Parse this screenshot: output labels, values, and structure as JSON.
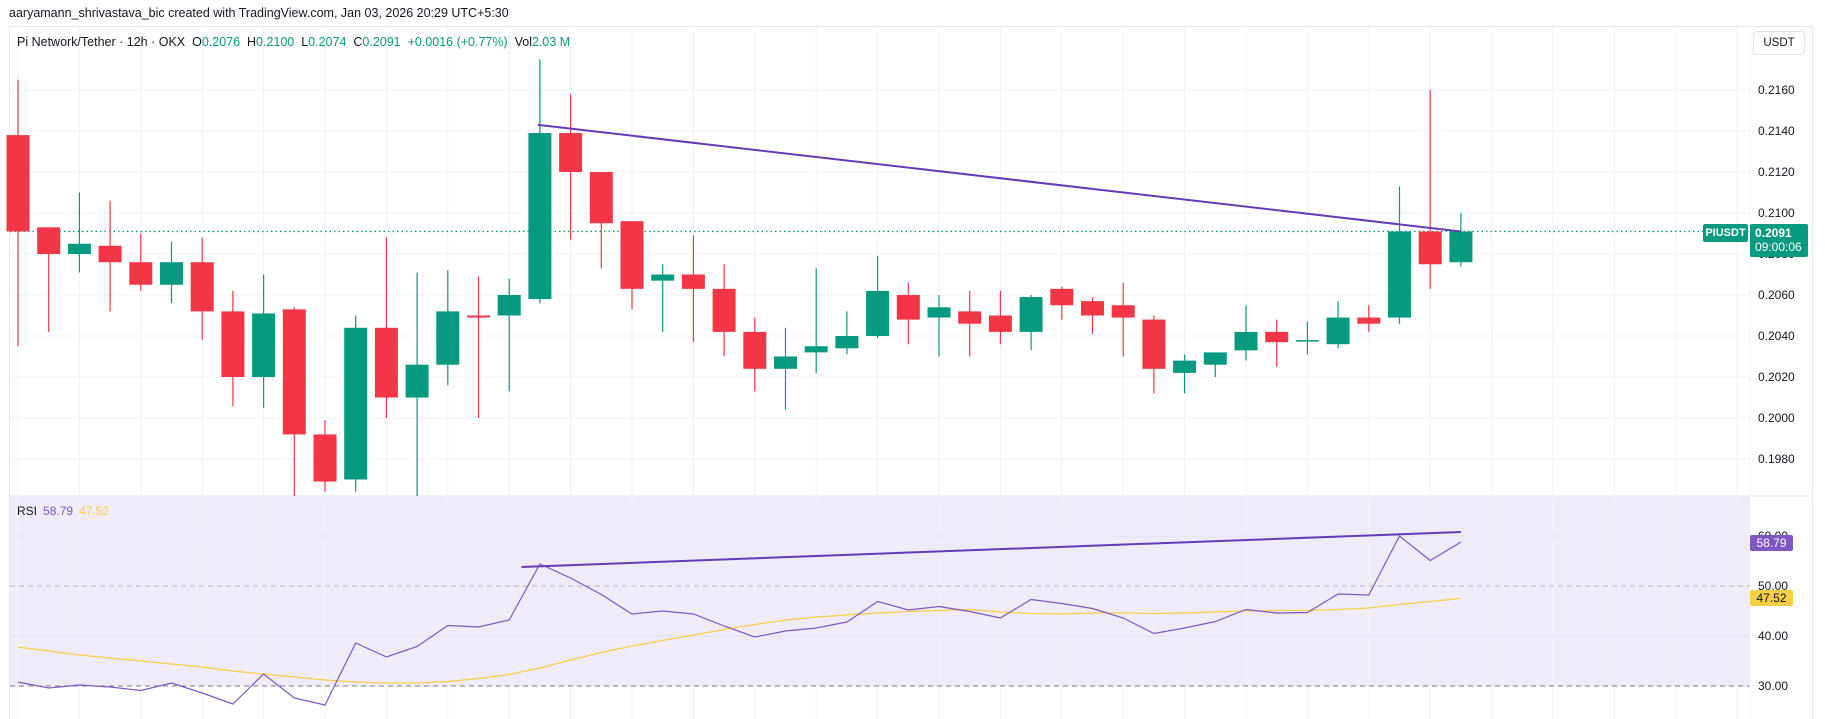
{
  "credit": "aaryamann_shrivastava_bic created with TradingView.com, Jan 03, 2026 20:29 UTC+5:30",
  "legend": {
    "symbol": "Pi Network/Tether · 12h · OKX",
    "open_label": "O",
    "open": "0.2076",
    "high_label": "H",
    "high": "0.2100",
    "low_label": "L",
    "low": "0.2074",
    "close_label": "C",
    "close": "0.2091",
    "change": "+0.0016 (+0.77%)",
    "vol_label": "Vol",
    "vol": "2.03 M"
  },
  "currency_button": "USDT",
  "price_badge": {
    "symbol": "PIUSDT",
    "price": "0.2091",
    "countdown": "09:00:06"
  },
  "rsi_legend": {
    "label": "RSI",
    "rsi": "58.79",
    "ma": "47.52"
  },
  "colors": {
    "up": "#089981",
    "down": "#f23645",
    "trendline": "#673ab7",
    "rsi_line": "#7e57c2",
    "rsi_ma": "#f7cf45",
    "rsi_band": "#efebf8",
    "grid": "#f0f1f4",
    "last_price": "#089981"
  },
  "chart_data": [
    {
      "type": "candlestick",
      "title": "Pi Network/Tether · 12h · OKX",
      "ylabel": "USDT",
      "ylim": [
        0.1968,
        0.2178
      ],
      "yticks": [
        "0.2160",
        "0.2140",
        "0.2120",
        "0.2100",
        "0.2080",
        "0.2060",
        "0.2040",
        "0.2020",
        "0.2000",
        "0.1980"
      ],
      "last_price": 0.2091,
      "candles": [
        {
          "o": 0.2138,
          "h": 0.2165,
          "l": 0.2035,
          "c": 0.2091
        },
        {
          "o": 0.2093,
          "h": 0.2093,
          "l": 0.2042,
          "c": 0.208
        },
        {
          "o": 0.208,
          "h": 0.211,
          "l": 0.2071,
          "c": 0.2085
        },
        {
          "o": 0.2084,
          "h": 0.2106,
          "l": 0.2052,
          "c": 0.2076
        },
        {
          "o": 0.2076,
          "h": 0.209,
          "l": 0.2062,
          "c": 0.2065
        },
        {
          "o": 0.2065,
          "h": 0.2086,
          "l": 0.2056,
          "c": 0.2076
        },
        {
          "o": 0.2076,
          "h": 0.2088,
          "l": 0.2038,
          "c": 0.2052
        },
        {
          "o": 0.2052,
          "h": 0.2062,
          "l": 0.2006,
          "c": 0.202
        },
        {
          "o": 0.202,
          "h": 0.207,
          "l": 0.2005,
          "c": 0.2051
        },
        {
          "o": 0.2053,
          "h": 0.2054,
          "l": 0.196,
          "c": 0.1992
        },
        {
          "o": 0.1992,
          "h": 0.1999,
          "l": 0.1964,
          "c": 0.1969
        },
        {
          "o": 0.197,
          "h": 0.205,
          "l": 0.1964,
          "c": 0.2044
        },
        {
          "o": 0.2044,
          "h": 0.2088,
          "l": 0.2,
          "c": 0.201
        },
        {
          "o": 0.201,
          "h": 0.2071,
          "l": 0.1955,
          "c": 0.2026
        },
        {
          "o": 0.2026,
          "h": 0.2072,
          "l": 0.2016,
          "c": 0.2052
        },
        {
          "o": 0.205,
          "h": 0.2069,
          "l": 0.2,
          "c": 0.2049
        },
        {
          "o": 0.205,
          "h": 0.2068,
          "l": 0.2013,
          "c": 0.206
        },
        {
          "o": 0.2058,
          "h": 0.2175,
          "l": 0.2056,
          "c": 0.2139
        },
        {
          "o": 0.2139,
          "h": 0.2158,
          "l": 0.2087,
          "c": 0.212
        },
        {
          "o": 0.212,
          "h": 0.212,
          "l": 0.2073,
          "c": 0.2095
        },
        {
          "o": 0.2096,
          "h": 0.2096,
          "l": 0.2053,
          "c": 0.2063
        },
        {
          "o": 0.2067,
          "h": 0.2075,
          "l": 0.2042,
          "c": 0.207
        },
        {
          "o": 0.207,
          "h": 0.2089,
          "l": 0.2037,
          "c": 0.2063
        },
        {
          "o": 0.2063,
          "h": 0.2075,
          "l": 0.203,
          "c": 0.2042
        },
        {
          "o": 0.2042,
          "h": 0.2049,
          "l": 0.2013,
          "c": 0.2024
        },
        {
          "o": 0.2024,
          "h": 0.2044,
          "l": 0.2004,
          "c": 0.203
        },
        {
          "o": 0.2032,
          "h": 0.2073,
          "l": 0.2022,
          "c": 0.2035
        },
        {
          "o": 0.2034,
          "h": 0.2052,
          "l": 0.2031,
          "c": 0.204
        },
        {
          "o": 0.204,
          "h": 0.2079,
          "l": 0.2039,
          "c": 0.2062
        },
        {
          "o": 0.206,
          "h": 0.2066,
          "l": 0.2036,
          "c": 0.2048
        },
        {
          "o": 0.2049,
          "h": 0.206,
          "l": 0.203,
          "c": 0.2054
        },
        {
          "o": 0.2052,
          "h": 0.2062,
          "l": 0.203,
          "c": 0.2046
        },
        {
          "o": 0.205,
          "h": 0.2062,
          "l": 0.2036,
          "c": 0.2042
        },
        {
          "o": 0.2042,
          "h": 0.206,
          "l": 0.2033,
          "c": 0.2059
        },
        {
          "o": 0.2063,
          "h": 0.2064,
          "l": 0.2048,
          "c": 0.2055
        },
        {
          "o": 0.2057,
          "h": 0.2059,
          "l": 0.2041,
          "c": 0.205
        },
        {
          "o": 0.2055,
          "h": 0.2066,
          "l": 0.203,
          "c": 0.2049
        },
        {
          "o": 0.2048,
          "h": 0.205,
          "l": 0.2012,
          "c": 0.2024
        },
        {
          "o": 0.2022,
          "h": 0.2031,
          "l": 0.2012,
          "c": 0.2028
        },
        {
          "o": 0.2026,
          "h": 0.2032,
          "l": 0.202,
          "c": 0.2032
        },
        {
          "o": 0.2033,
          "h": 0.2055,
          "l": 0.2028,
          "c": 0.2042
        },
        {
          "o": 0.2042,
          "h": 0.2048,
          "l": 0.2025,
          "c": 0.2037
        },
        {
          "o": 0.2038,
          "h": 0.2047,
          "l": 0.2031,
          "c": 0.2038
        },
        {
          "o": 0.2036,
          "h": 0.2057,
          "l": 0.2034,
          "c": 0.2049
        },
        {
          "o": 0.2049,
          "h": 0.2055,
          "l": 0.2042,
          "c": 0.2046
        },
        {
          "o": 0.2049,
          "h": 0.2113,
          "l": 0.2046,
          "c": 0.2091
        },
        {
          "o": 0.2091,
          "h": 0.216,
          "l": 0.2063,
          "c": 0.2075
        },
        {
          "o": 0.2076,
          "h": 0.21,
          "l": 0.2074,
          "c": 0.2091
        }
      ],
      "trendline": {
        "from": {
          "index": 17,
          "price": 0.2143
        },
        "to": {
          "index": 47,
          "price": 0.2091
        }
      }
    },
    {
      "type": "line",
      "title": "RSI",
      "ylim": [
        28,
        68
      ],
      "yticks": [
        "60.00",
        "50.00",
        "40.00",
        "30.00"
      ],
      "levels": [
        70,
        50,
        30
      ],
      "series": [
        {
          "name": "RSI",
          "values": [
            30.8,
            29.6,
            30.2,
            29.8,
            29.1,
            30.6,
            28.6,
            26.4,
            32.4,
            27.6,
            26.2,
            38.6,
            35.8,
            37.9,
            42.1,
            41.8,
            43.2,
            54.4,
            51.6,
            48.3,
            44.4,
            45.0,
            44.4,
            42.0,
            39.8,
            41.0,
            41.6,
            42.8,
            46.9,
            45.2,
            45.9,
            44.9,
            43.6,
            47.3,
            46.5,
            45.5,
            43.6,
            40.5,
            41.6,
            42.9,
            45.3,
            44.6,
            44.7,
            48.4,
            48.2,
            60.0,
            55.1,
            58.79
          ]
        },
        {
          "name": "RSI-based MA",
          "values": [
            37.8,
            37.0,
            36.2,
            35.6,
            35.0,
            34.4,
            33.8,
            33.0,
            32.4,
            31.8,
            31.2,
            30.8,
            30.6,
            30.6,
            30.9,
            31.5,
            32.3,
            33.6,
            35.2,
            36.7,
            38.0,
            39.1,
            40.2,
            41.3,
            42.3,
            43.2,
            43.8,
            44.2,
            44.6,
            44.9,
            45.1,
            45.3,
            44.8,
            44.5,
            44.4,
            44.6,
            44.6,
            44.5,
            44.6,
            44.8,
            45.0,
            45.1,
            45.1,
            45.3,
            45.6,
            46.3,
            46.9,
            47.52
          ]
        }
      ],
      "trendline": {
        "from": {
          "index": 16.4,
          "value": 53.8
        },
        "to": {
          "index": 47,
          "value": 60.8
        }
      }
    }
  ]
}
